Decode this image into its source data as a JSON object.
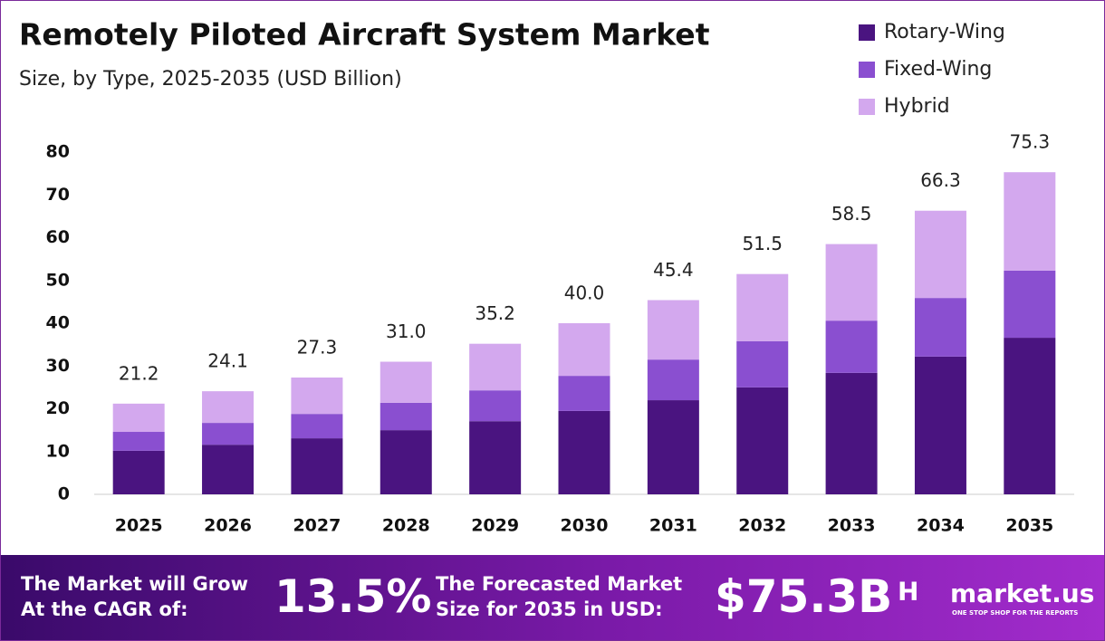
{
  "chart_data": {
    "type": "stacked-bar",
    "title": "Remotely Piloted Aircraft System Market",
    "subtitle": "Size, by Type, 2025-2035 (USD Billion)",
    "categories": [
      "2025",
      "2026",
      "2027",
      "2028",
      "2029",
      "2030",
      "2031",
      "2032",
      "2033",
      "2034",
      "2035"
    ],
    "series": [
      {
        "name": "Rotary-Wing",
        "color": "#4a1480",
        "values": [
          10.2,
          11.6,
          13.1,
          15.0,
          17.1,
          19.5,
          22.0,
          25.0,
          28.4,
          32.2,
          36.6
        ]
      },
      {
        "name": "Fixed-Wing",
        "color": "#8a4fd0",
        "values": [
          4.4,
          5.1,
          5.7,
          6.4,
          7.2,
          8.2,
          9.5,
          10.8,
          12.2,
          13.7,
          15.7
        ]
      },
      {
        "name": "Hybrid",
        "color": "#d3a8ee",
        "values": [
          6.6,
          7.4,
          8.5,
          9.6,
          10.9,
          12.3,
          13.9,
          15.7,
          17.9,
          20.4,
          23.0
        ]
      }
    ],
    "totals": [
      21.2,
      24.1,
      27.3,
      31.0,
      35.2,
      40.0,
      45.4,
      51.5,
      58.5,
      66.3,
      75.3
    ],
    "total_labels": [
      "21.2",
      "24.1",
      "27.3",
      "31.0",
      "35.2",
      "40.0",
      "45.4",
      "51.5",
      "58.5",
      "66.3",
      "75.3"
    ],
    "ylim": [
      0,
      80
    ],
    "yticks": [
      0,
      10,
      20,
      30,
      40,
      50,
      60,
      70,
      80
    ],
    "grid": false,
    "legend": "top-right"
  },
  "footer": {
    "cagr_label": [
      "The Market will Grow",
      "At the CAGR of:"
    ],
    "cagr": "13.5%",
    "forecast_label": [
      "The Forecasted Market",
      "Size for 2035 in USD:"
    ],
    "forecast": "$75.3B",
    "brand": "market.us",
    "tagline": "ONE STOP SHOP FOR THE REPORTS"
  }
}
